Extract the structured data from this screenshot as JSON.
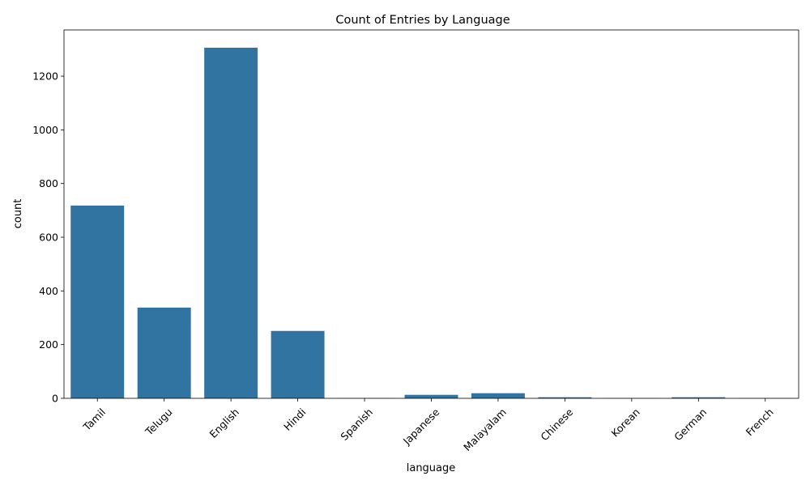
{
  "chart_data": {
    "type": "bar",
    "title": "Count of Entries by Language",
    "xlabel": "language",
    "ylabel": "count",
    "categories": [
      "Tamil",
      "Telugu",
      "English",
      "Hindi",
      "Spanish",
      "Japanese",
      "Malayalam",
      "Chinese",
      "Korean",
      "German",
      "French"
    ],
    "values": [
      718,
      338,
      1306,
      251,
      1,
      13,
      19,
      4,
      1,
      4,
      1
    ],
    "ylim": [
      0,
      1372
    ],
    "yticks": [
      0,
      200,
      400,
      600,
      800,
      1000,
      1200
    ],
    "xtick_rotation_deg": 45,
    "bar_color": "#3274a1",
    "grid": false,
    "legend": "none"
  }
}
